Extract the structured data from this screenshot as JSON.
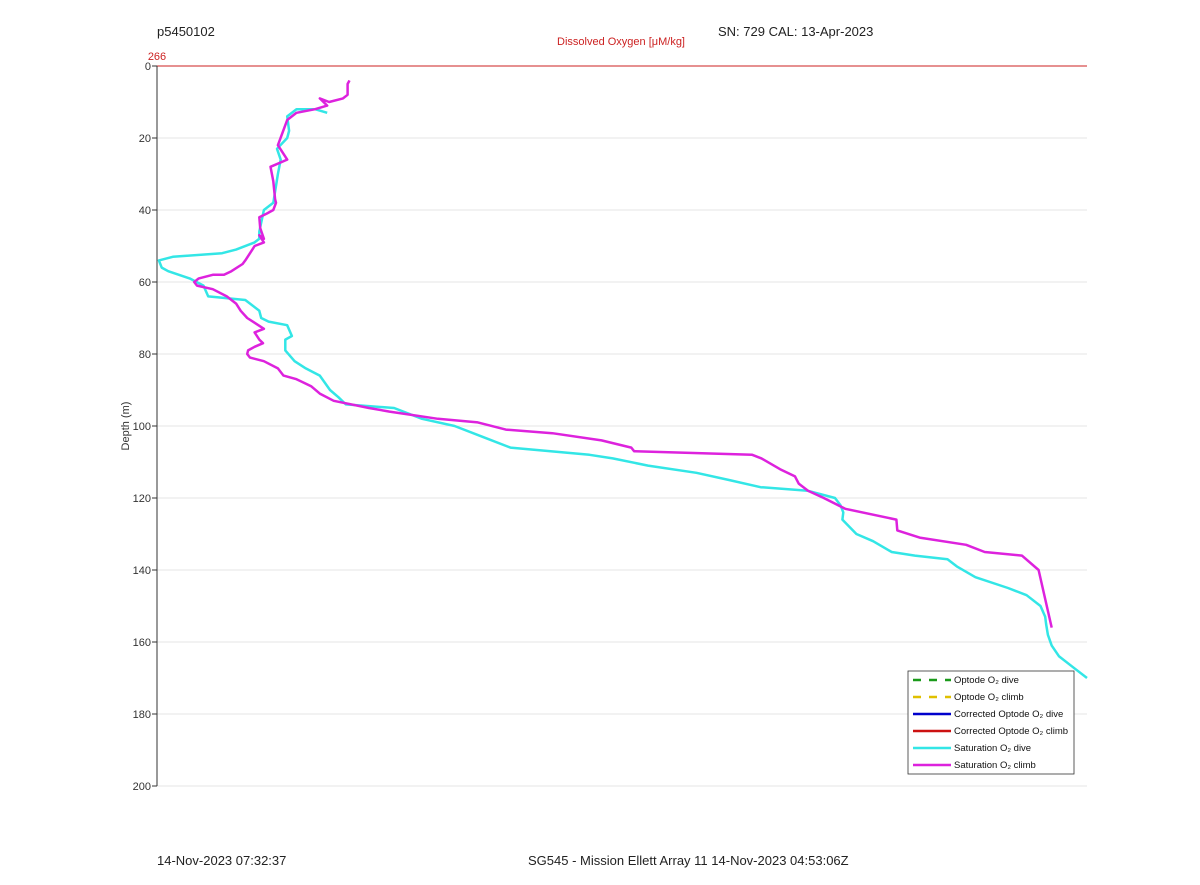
{
  "header": {
    "plot_id": "p5450102",
    "sn_cal": "SN: 729  CAL: 13-Apr-2023"
  },
  "footer": {
    "left": "14-Nov-2023 07:32:37",
    "center": "SG545 - Mission Ellett Array 11 14-Nov-2023 04:53:06Z"
  },
  "chart_data": {
    "type": "line",
    "top_axis_label": "Dissolved Oxygen [μM/kg]",
    "top_axis_tick": "266",
    "ylabel": "Depth (m)",
    "ylim": [
      0,
      200
    ],
    "y_reversed": true,
    "yticks": [
      0,
      20,
      40,
      60,
      80,
      100,
      120,
      140,
      160,
      180,
      200
    ],
    "grid": true,
    "legend_position": "bottom-right",
    "legend": [
      {
        "label": "Optode O₂ dive",
        "color": "#1a9a1a",
        "dashed": true
      },
      {
        "label": "Optode O₂ climb",
        "color": "#e0c000",
        "dashed": true
      },
      {
        "label": "Corrected Optode O₂ dive",
        "color": "#0000cc",
        "dashed": false
      },
      {
        "label": "Corrected Optode O₂ climb",
        "color": "#cc1111",
        "dashed": false
      },
      {
        "label": "Saturation O₂ dive",
        "color": "#33e6e6",
        "dashed": false
      },
      {
        "label": "Saturation O₂ climb",
        "color": "#dd22dd",
        "dashed": false
      }
    ],
    "series": [
      {
        "name": "Saturation O₂ dive",
        "color": "#33e6e6",
        "x": [
          0.183,
          0.17,
          0.15,
          0.14,
          0.142,
          0.14,
          0.129,
          0.133,
          0.13,
          0.125,
          0.115,
          0.11,
          0.11,
          0.105,
          0.085,
          0.07,
          0.017,
          0.002,
          0.005,
          0.012,
          0.035,
          0.05,
          0.055,
          0.095,
          0.11,
          0.112,
          0.12,
          0.14,
          0.145,
          0.138,
          0.138,
          0.148,
          0.16,
          0.175,
          0.186,
          0.195,
          0.203,
          0.255,
          0.285,
          0.32,
          0.35,
          0.38,
          0.465,
          0.49,
          0.528,
          0.58,
          0.615,
          0.649,
          0.7,
          0.729,
          0.735,
          0.738,
          0.737,
          0.752,
          0.77,
          0.79,
          0.815,
          0.85,
          0.86,
          0.88,
          0.915,
          0.935,
          0.95,
          0.955,
          0.956,
          0.958,
          0.962,
          0.97,
          0.985,
          1.0
        ],
        "y": [
          13,
          12,
          12,
          14,
          18,
          20,
          23,
          26,
          30,
          38,
          40,
          46,
          48,
          49,
          51,
          52,
          53,
          54,
          56,
          57,
          59,
          61,
          64,
          65,
          68,
          70,
          71,
          72,
          75,
          76,
          79,
          82,
          84,
          86,
          90,
          92,
          94,
          95,
          98,
          100,
          103,
          106,
          108,
          109,
          111,
          113,
          115,
          117,
          118,
          120,
          122,
          124,
          126,
          130,
          132,
          135,
          136,
          137,
          139,
          142,
          145,
          147,
          150,
          153,
          155,
          158,
          161,
          164,
          167,
          170
        ]
      },
      {
        "name": "Saturation O₂ climb",
        "color": "#dd22dd",
        "x": [
          0.207,
          0.205,
          0.205,
          0.2,
          0.185,
          0.175,
          0.183,
          0.17,
          0.15,
          0.14,
          0.13,
          0.14,
          0.122,
          0.125,
          0.127,
          0.128,
          0.125,
          0.118,
          0.11,
          0.111,
          0.115,
          0.11,
          0.115,
          0.105,
          0.1,
          0.095,
          0.092,
          0.08,
          0.072,
          0.06,
          0.045,
          0.04,
          0.043,
          0.06,
          0.075,
          0.085,
          0.09,
          0.097,
          0.115,
          0.105,
          0.11,
          0.114,
          0.105,
          0.098,
          0.097,
          0.1,
          0.115,
          0.13,
          0.136,
          0.15,
          0.166,
          0.175,
          0.19,
          0.228,
          0.25,
          0.302,
          0.345,
          0.375,
          0.425,
          0.478,
          0.51,
          0.513,
          0.64,
          0.65,
          0.67,
          0.686,
          0.69,
          0.7,
          0.717,
          0.74,
          0.795,
          0.796,
          0.82,
          0.87,
          0.89,
          0.93,
          0.948,
          0.962
        ],
        "y": [
          4,
          5,
          8,
          9,
          10,
          9,
          11,
          12,
          13,
          15,
          22,
          26,
          28,
          32,
          37,
          38,
          40,
          41,
          42,
          45,
          48,
          47,
          49,
          50,
          52,
          54,
          55,
          57,
          58,
          58,
          59,
          60,
          61,
          62,
          64,
          66,
          68,
          70,
          73,
          74,
          76,
          77,
          78,
          79,
          80,
          81,
          82,
          84,
          86,
          87,
          89,
          91,
          93,
          95,
          96,
          98,
          99,
          101,
          102,
          104,
          106,
          107,
          108,
          109,
          112,
          114,
          116,
          118,
          120,
          123,
          126,
          129,
          131,
          133,
          135,
          136,
          140,
          156
        ]
      }
    ]
  }
}
